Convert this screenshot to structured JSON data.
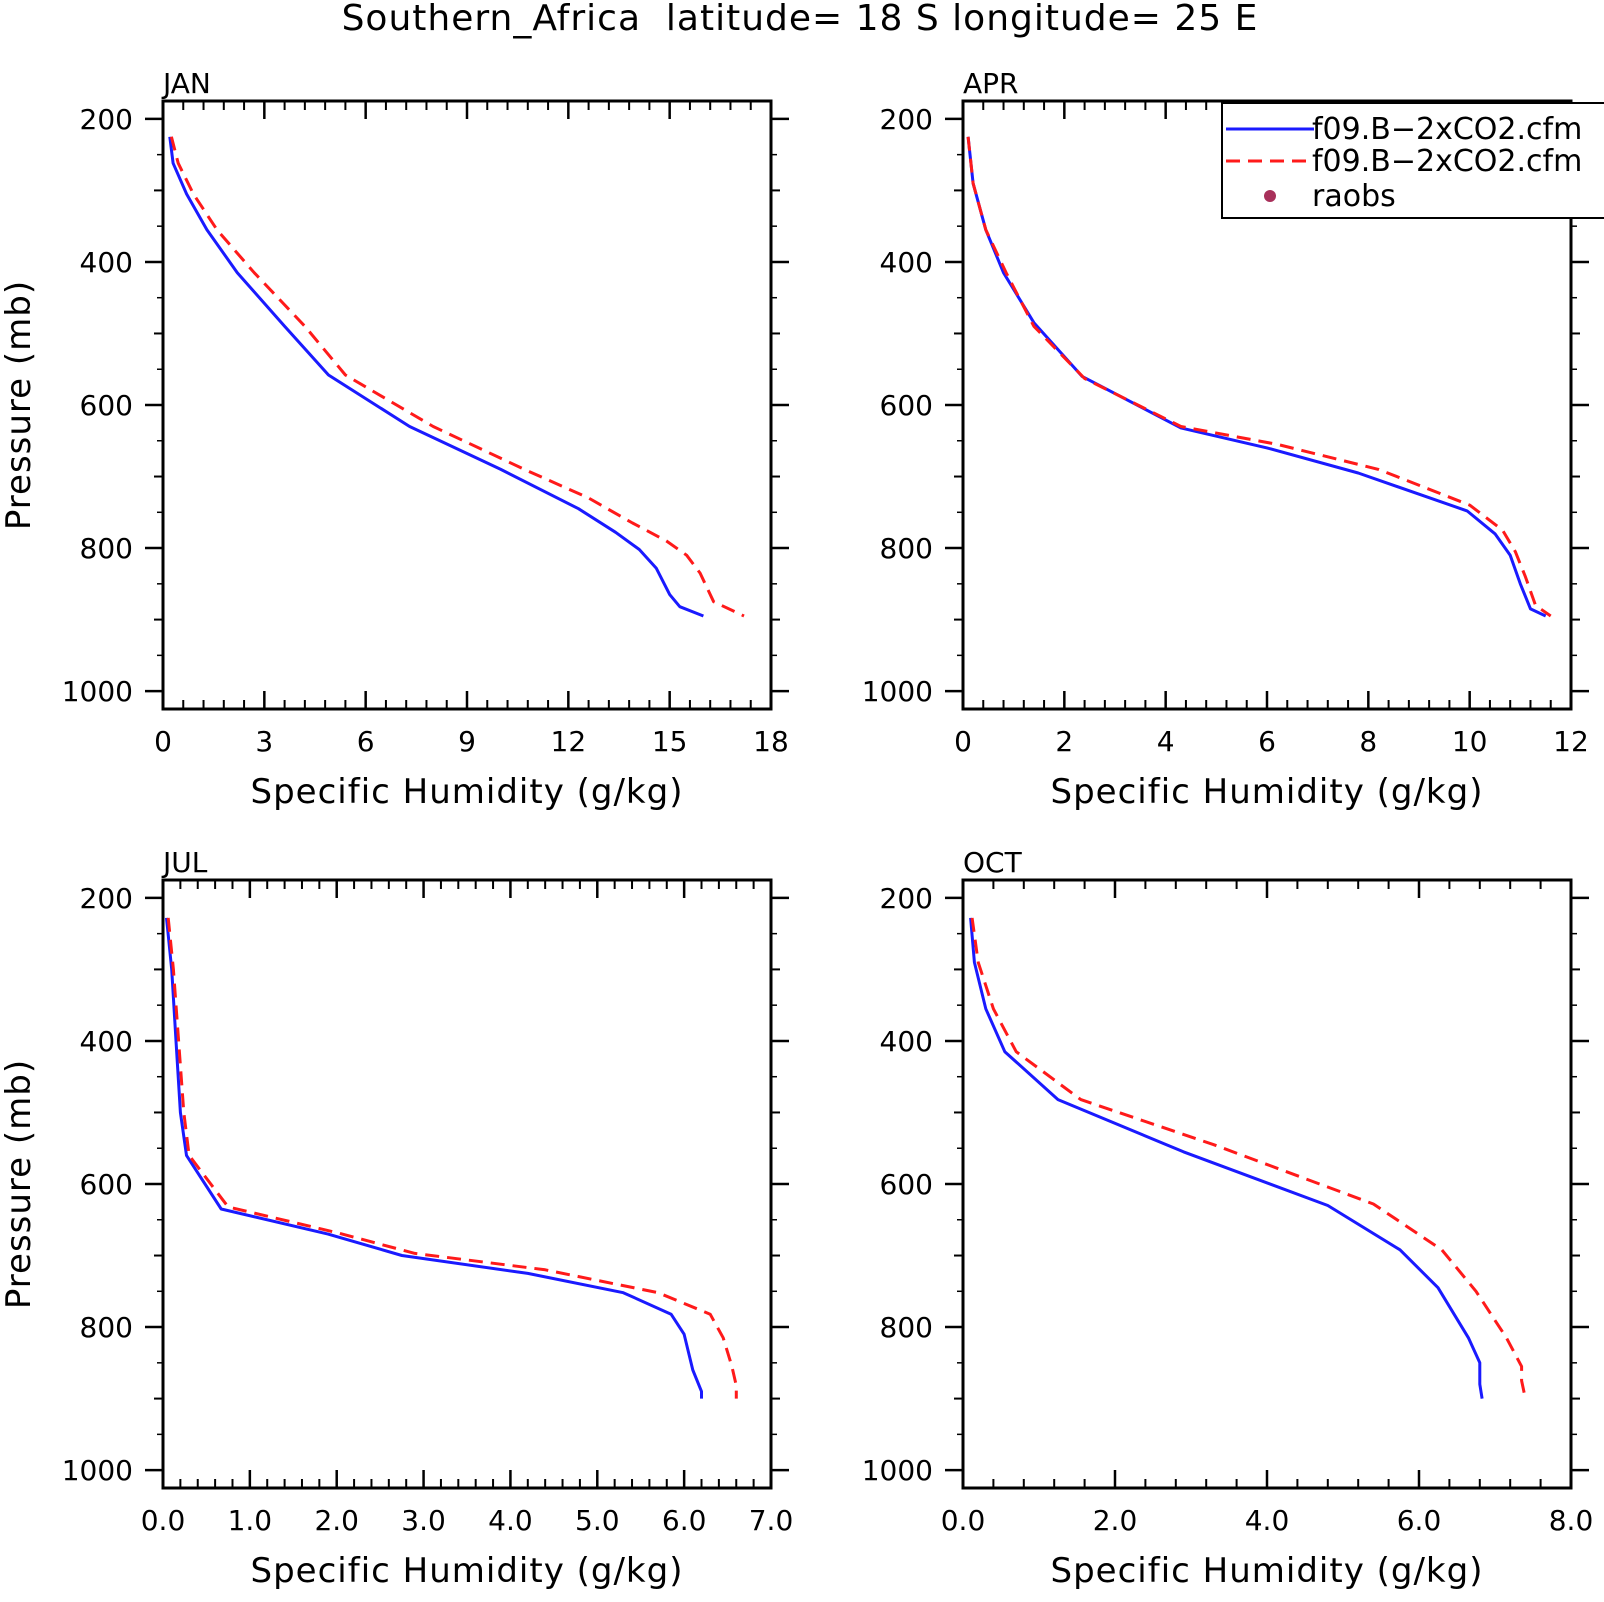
{
  "page": {
    "title": "Southern_Africa  latitude= 18 S longitude= 25 E"
  },
  "colors": {
    "series_1": "#1a1aff",
    "series_2": "#ff1a1a",
    "raobs": "#a8305a",
    "frame": "#000000"
  },
  "legend": {
    "placement": "top-right of APR panel (clipped at page edge)",
    "entries": [
      {
        "label": "f09.B−2xCO2.cfm",
        "style": "solid",
        "color": "#1a1aff"
      },
      {
        "label": "f09.B−2xCO2.cfm",
        "style": "dashed",
        "color": "#ff1a1a"
      },
      {
        "label": "raobs",
        "style": "dot",
        "color": "#a8305a"
      }
    ]
  },
  "chart_data": [
    {
      "type": "line",
      "panel": "JAN",
      "title": "JAN",
      "xlabel": "Specific Humidity (g/kg)",
      "ylabel": "Pressure (mb)",
      "xlim": [
        0,
        18
      ],
      "ylim": [
        1000,
        200
      ],
      "y_inverted": true,
      "xticks": [
        0,
        3,
        6,
        9,
        12,
        15,
        18
      ],
      "xtick_labels": [
        "0",
        "3",
        "6",
        "9",
        "12",
        "15",
        "18"
      ],
      "yticks": [
        200,
        400,
        600,
        800,
        1000
      ],
      "ytick_labels": [
        "200",
        "400",
        "600",
        "800",
        "1000"
      ],
      "grid": false,
      "series": [
        {
          "legend_index": 0,
          "style": "solid",
          "color": "#1a1aff",
          "x": [
            0.2,
            0.3,
            0.7,
            1.3,
            2.2,
            3.6,
            4.9,
            7.3,
            10.0,
            12.3,
            13.4,
            14.1,
            14.6,
            15.0,
            15.3,
            16.0
          ],
          "y": [
            225,
            262,
            305,
            355,
            415,
            490,
            558,
            630,
            690,
            745,
            778,
            802,
            828,
            865,
            882,
            895
          ]
        },
        {
          "legend_index": 1,
          "style": "dashed",
          "color": "#ff1a1a",
          "x": [
            0.25,
            0.45,
            0.9,
            1.6,
            2.7,
            4.2,
            5.4,
            8.0,
            10.7,
            12.6,
            13.9,
            14.9,
            15.5,
            15.9,
            16.3,
            17.2
          ],
          "y": [
            225,
            262,
            305,
            355,
            415,
            490,
            558,
            630,
            690,
            730,
            765,
            790,
            810,
            835,
            875,
            895
          ]
        }
      ]
    },
    {
      "type": "line",
      "panel": "APR",
      "title": "APR",
      "xlabel": "Specific Humidity (g/kg)",
      "ylabel": "",
      "xlim": [
        0,
        12
      ],
      "ylim": [
        1000,
        200
      ],
      "y_inverted": true,
      "xticks": [
        0,
        2,
        4,
        6,
        8,
        10,
        12
      ],
      "xtick_labels": [
        "0",
        "2",
        "4",
        "6",
        "8",
        "10",
        "12"
      ],
      "yticks": [
        200,
        400,
        600,
        800,
        1000
      ],
      "ytick_labels": [
        "200",
        "400",
        "600",
        "800",
        "1000"
      ],
      "grid": false,
      "series": [
        {
          "legend_index": 0,
          "style": "solid",
          "color": "#1a1aff",
          "x": [
            0.1,
            0.2,
            0.45,
            0.8,
            1.4,
            2.35,
            4.3,
            6.0,
            7.8,
            9.95,
            10.5,
            10.8,
            11.0,
            11.2,
            11.5
          ],
          "y": [
            225,
            290,
            355,
            415,
            485,
            560,
            632,
            660,
            695,
            748,
            780,
            810,
            850,
            885,
            895
          ]
        },
        {
          "legend_index": 1,
          "style": "dashed",
          "color": "#ff1a1a",
          "x": [
            0.1,
            0.2,
            0.45,
            0.85,
            1.4,
            2.4,
            4.3,
            6.2,
            8.2,
            10.0,
            10.65,
            10.9,
            11.1,
            11.3,
            11.6
          ],
          "y": [
            225,
            290,
            355,
            415,
            490,
            563,
            630,
            655,
            690,
            740,
            775,
            805,
            840,
            880,
            895
          ]
        }
      ]
    },
    {
      "type": "line",
      "panel": "JUL",
      "title": "JUL",
      "xlabel": "Specific Humidity (g/kg)",
      "ylabel": "Pressure (mb)",
      "xlim": [
        0,
        7
      ],
      "ylim": [
        1000,
        200
      ],
      "y_inverted": true,
      "xticks": [
        0,
        1,
        2,
        3,
        4,
        5,
        6,
        7
      ],
      "xtick_labels": [
        "0.0",
        "1.0",
        "2.0",
        "3.0",
        "4.0",
        "5.0",
        "6.0",
        "7.0"
      ],
      "yticks": [
        200,
        400,
        600,
        800,
        1000
      ],
      "ytick_labels": [
        "200",
        "400",
        "600",
        "800",
        "1000"
      ],
      "grid": false,
      "series": [
        {
          "legend_index": 0,
          "style": "solid",
          "color": "#1a1aff",
          "x": [
            0.04,
            0.1,
            0.15,
            0.2,
            0.27,
            0.67,
            1.9,
            2.75,
            4.2,
            5.3,
            5.85,
            6.0,
            6.1,
            6.2,
            6.2
          ],
          "y": [
            228,
            300,
            400,
            500,
            560,
            635,
            670,
            700,
            725,
            752,
            782,
            810,
            860,
            890,
            900
          ]
        },
        {
          "legend_index": 1,
          "style": "dashed",
          "color": "#ff1a1a",
          "x": [
            0.06,
            0.12,
            0.18,
            0.24,
            0.3,
            0.75,
            2.0,
            2.9,
            4.4,
            5.7,
            6.3,
            6.45,
            6.55,
            6.6,
            6.6
          ],
          "y": [
            228,
            300,
            400,
            500,
            560,
            632,
            668,
            697,
            720,
            752,
            782,
            815,
            855,
            882,
            900
          ]
        }
      ]
    },
    {
      "type": "line",
      "panel": "OCT",
      "title": "OCT",
      "xlabel": "Specific Humidity (g/kg)",
      "ylabel": "",
      "xlim": [
        0,
        8
      ],
      "ylim": [
        1000,
        200
      ],
      "y_inverted": true,
      "xticks": [
        0,
        2,
        4,
        6,
        8
      ],
      "xtick_labels": [
        "0.0",
        "2.0",
        "4.0",
        "6.0",
        "8.0"
      ],
      "yticks": [
        200,
        400,
        600,
        800,
        1000
      ],
      "ytick_labels": [
        "200",
        "400",
        "600",
        "800",
        "1000"
      ],
      "grid": false,
      "series": [
        {
          "legend_index": 0,
          "style": "solid",
          "color": "#1a1aff",
          "x": [
            0.1,
            0.15,
            0.3,
            0.55,
            1.25,
            2.9,
            4.8,
            5.75,
            6.25,
            6.65,
            6.8,
            6.8,
            6.83
          ],
          "y": [
            228,
            290,
            355,
            415,
            482,
            555,
            630,
            692,
            745,
            815,
            850,
            880,
            900
          ]
        },
        {
          "legend_index": 1,
          "style": "dashed",
          "color": "#ff1a1a",
          "x": [
            0.12,
            0.2,
            0.4,
            0.7,
            1.55,
            3.3,
            5.4,
            6.3,
            6.75,
            7.15,
            7.35,
            7.35,
            7.4
          ],
          "y": [
            228,
            290,
            355,
            415,
            482,
            545,
            628,
            692,
            750,
            815,
            855,
            875,
            900
          ]
        }
      ]
    }
  ]
}
